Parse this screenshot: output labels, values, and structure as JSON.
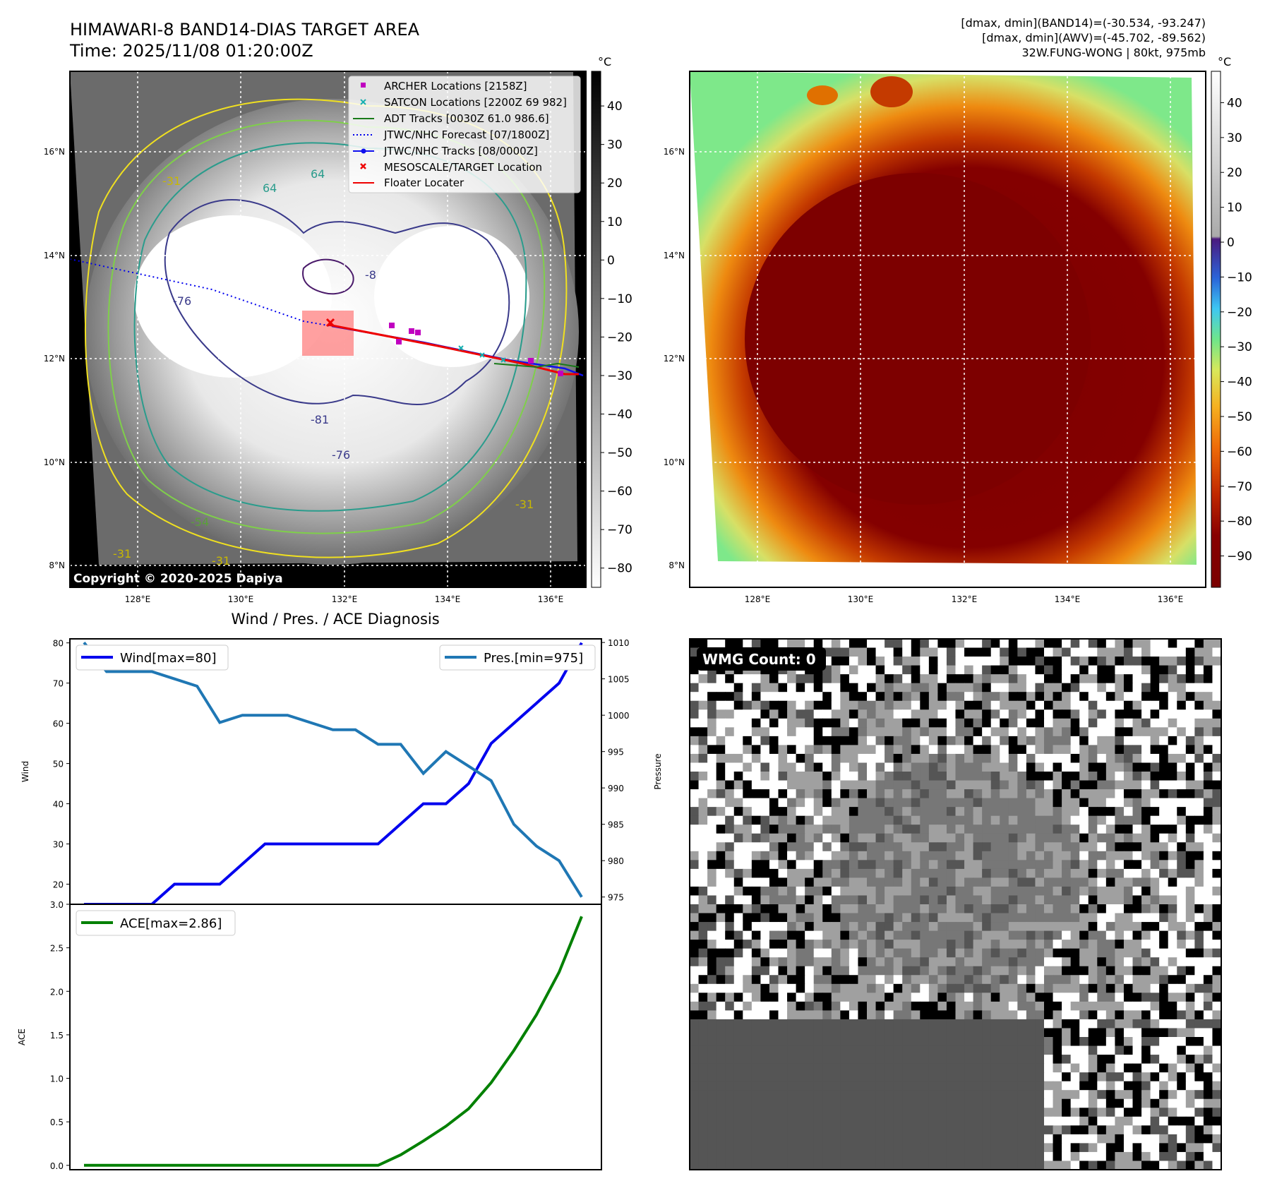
{
  "header": {
    "title_line1": "HIMAWARI-8 BAND14-DIAS TARGET AREA",
    "title_line2": "Time: 2025/11/08 01:20:00Z",
    "info_line1": "[dmax, dmin](BAND14)=(-30.534, -93.247)",
    "info_line2": "[dmax, dmin](AWV)=(-45.702, -89.562)",
    "info_line3": "32W.FUNG-WONG | 80kt, 975mb"
  },
  "map_panels": {
    "lat_labels": [
      "16°N",
      "14°N",
      "12°N",
      "10°N",
      "8°N"
    ],
    "lon_labels": [
      "128°E",
      "130°E",
      "132°E",
      "134°E",
      "136°E"
    ],
    "copyright": "Copyright © 2020-2025 Dapiya",
    "contour_labels": [
      "-76",
      "-8",
      "-81",
      "-76",
      "64",
      "-31",
      "-54",
      "-31",
      "-31",
      "-31",
      "64"
    ]
  },
  "left_colorbar": {
    "unit": "°C",
    "ticks": [
      "40",
      "30",
      "20",
      "10",
      "0",
      "−10",
      "−20",
      "−30",
      "−40",
      "−50",
      "−60",
      "−70",
      "−80"
    ]
  },
  "right_colorbar": {
    "unit": "°C",
    "ticks": [
      "40",
      "30",
      "20",
      "10",
      "0",
      "−10",
      "−20",
      "−30",
      "−40",
      "−50",
      "−60",
      "−70",
      "−80",
      "−90"
    ]
  },
  "legend": [
    {
      "label": "ARCHER Locations [2158Z]",
      "marker": "square",
      "color": "#c000c0"
    },
    {
      "label": "SATCON Locations [2200Z 69 982]",
      "marker": "x",
      "color": "#17b0b0"
    },
    {
      "label": "ADT Tracks [0030Z 61.0 986.6]",
      "marker": "line",
      "color": "#1a7a1a"
    },
    {
      "label": "JTWC/NHC Forecast [07/1800Z]",
      "marker": "dotted",
      "color": "#0000ee"
    },
    {
      "label": "JTWC/NHC Tracks [08/0000Z]",
      "marker": "line-dot",
      "color": "#1010ee"
    },
    {
      "label": "MESOSCALE/TARGET Location",
      "marker": "x",
      "color": "#ee0000"
    },
    {
      "label": "Floater Locater",
      "marker": "line",
      "color": "#ee0000"
    }
  ],
  "wmg": {
    "label": "WMG Count: 0"
  },
  "chart_data": [
    {
      "type": "line",
      "title": "Wind / Pres. / ACE Diagnosis",
      "x": [
        0,
        1,
        2,
        3,
        4,
        5,
        6,
        7,
        8,
        9,
        10,
        11,
        12,
        13,
        14,
        15,
        16,
        17,
        18,
        19,
        20,
        21,
        22
      ],
      "series": [
        {
          "name": "Wind[max=80]",
          "axis": "left",
          "color": "#0000ee",
          "values": [
            15,
            15,
            15,
            15,
            20,
            20,
            20,
            25,
            30,
            30,
            30,
            30,
            30,
            30,
            35,
            40,
            40,
            45,
            55,
            60,
            65,
            70,
            80
          ]
        },
        {
          "name": "Pres.[min=975]",
          "axis": "right",
          "color": "#1f77b4",
          "values": [
            1010,
            1006,
            1006,
            1006,
            1005,
            1004,
            999,
            1000,
            1000,
            1000,
            999,
            998,
            998,
            996,
            996,
            992,
            995,
            993,
            991,
            985,
            982,
            980,
            975
          ]
        }
      ],
      "ylabel": "Wind",
      "ylabel_right": "Pressure",
      "ylim": [
        15,
        81
      ],
      "ylim_right": [
        974,
        1010.5
      ],
      "yticks": [
        "80",
        "70",
        "60",
        "50",
        "40",
        "30",
        "20"
      ],
      "yticks_right": [
        "1010",
        "1005",
        "1000",
        "995",
        "990",
        "985",
        "980",
        "975"
      ],
      "legend": "top-left and top-right"
    },
    {
      "type": "line",
      "x": [
        0,
        1,
        2,
        3,
        4,
        5,
        6,
        7,
        8,
        9,
        10,
        11,
        12,
        13,
        14,
        15,
        16,
        17,
        18,
        19,
        20,
        21,
        22
      ],
      "series": [
        {
          "name": "ACE[max=2.86]",
          "color": "#008000",
          "values": [
            0,
            0,
            0,
            0,
            0,
            0,
            0,
            0,
            0,
            0,
            0,
            0,
            0,
            0,
            0.12,
            0.28,
            0.45,
            0.65,
            0.95,
            1.32,
            1.73,
            2.22,
            2.86
          ]
        }
      ],
      "ylabel": "ACE",
      "ylim": [
        -0.05,
        3.0
      ],
      "yticks": [
        "3.0",
        "2.5",
        "2.0",
        "1.5",
        "1.0",
        "0.5",
        "0.0"
      ],
      "legend": "top-left"
    }
  ]
}
